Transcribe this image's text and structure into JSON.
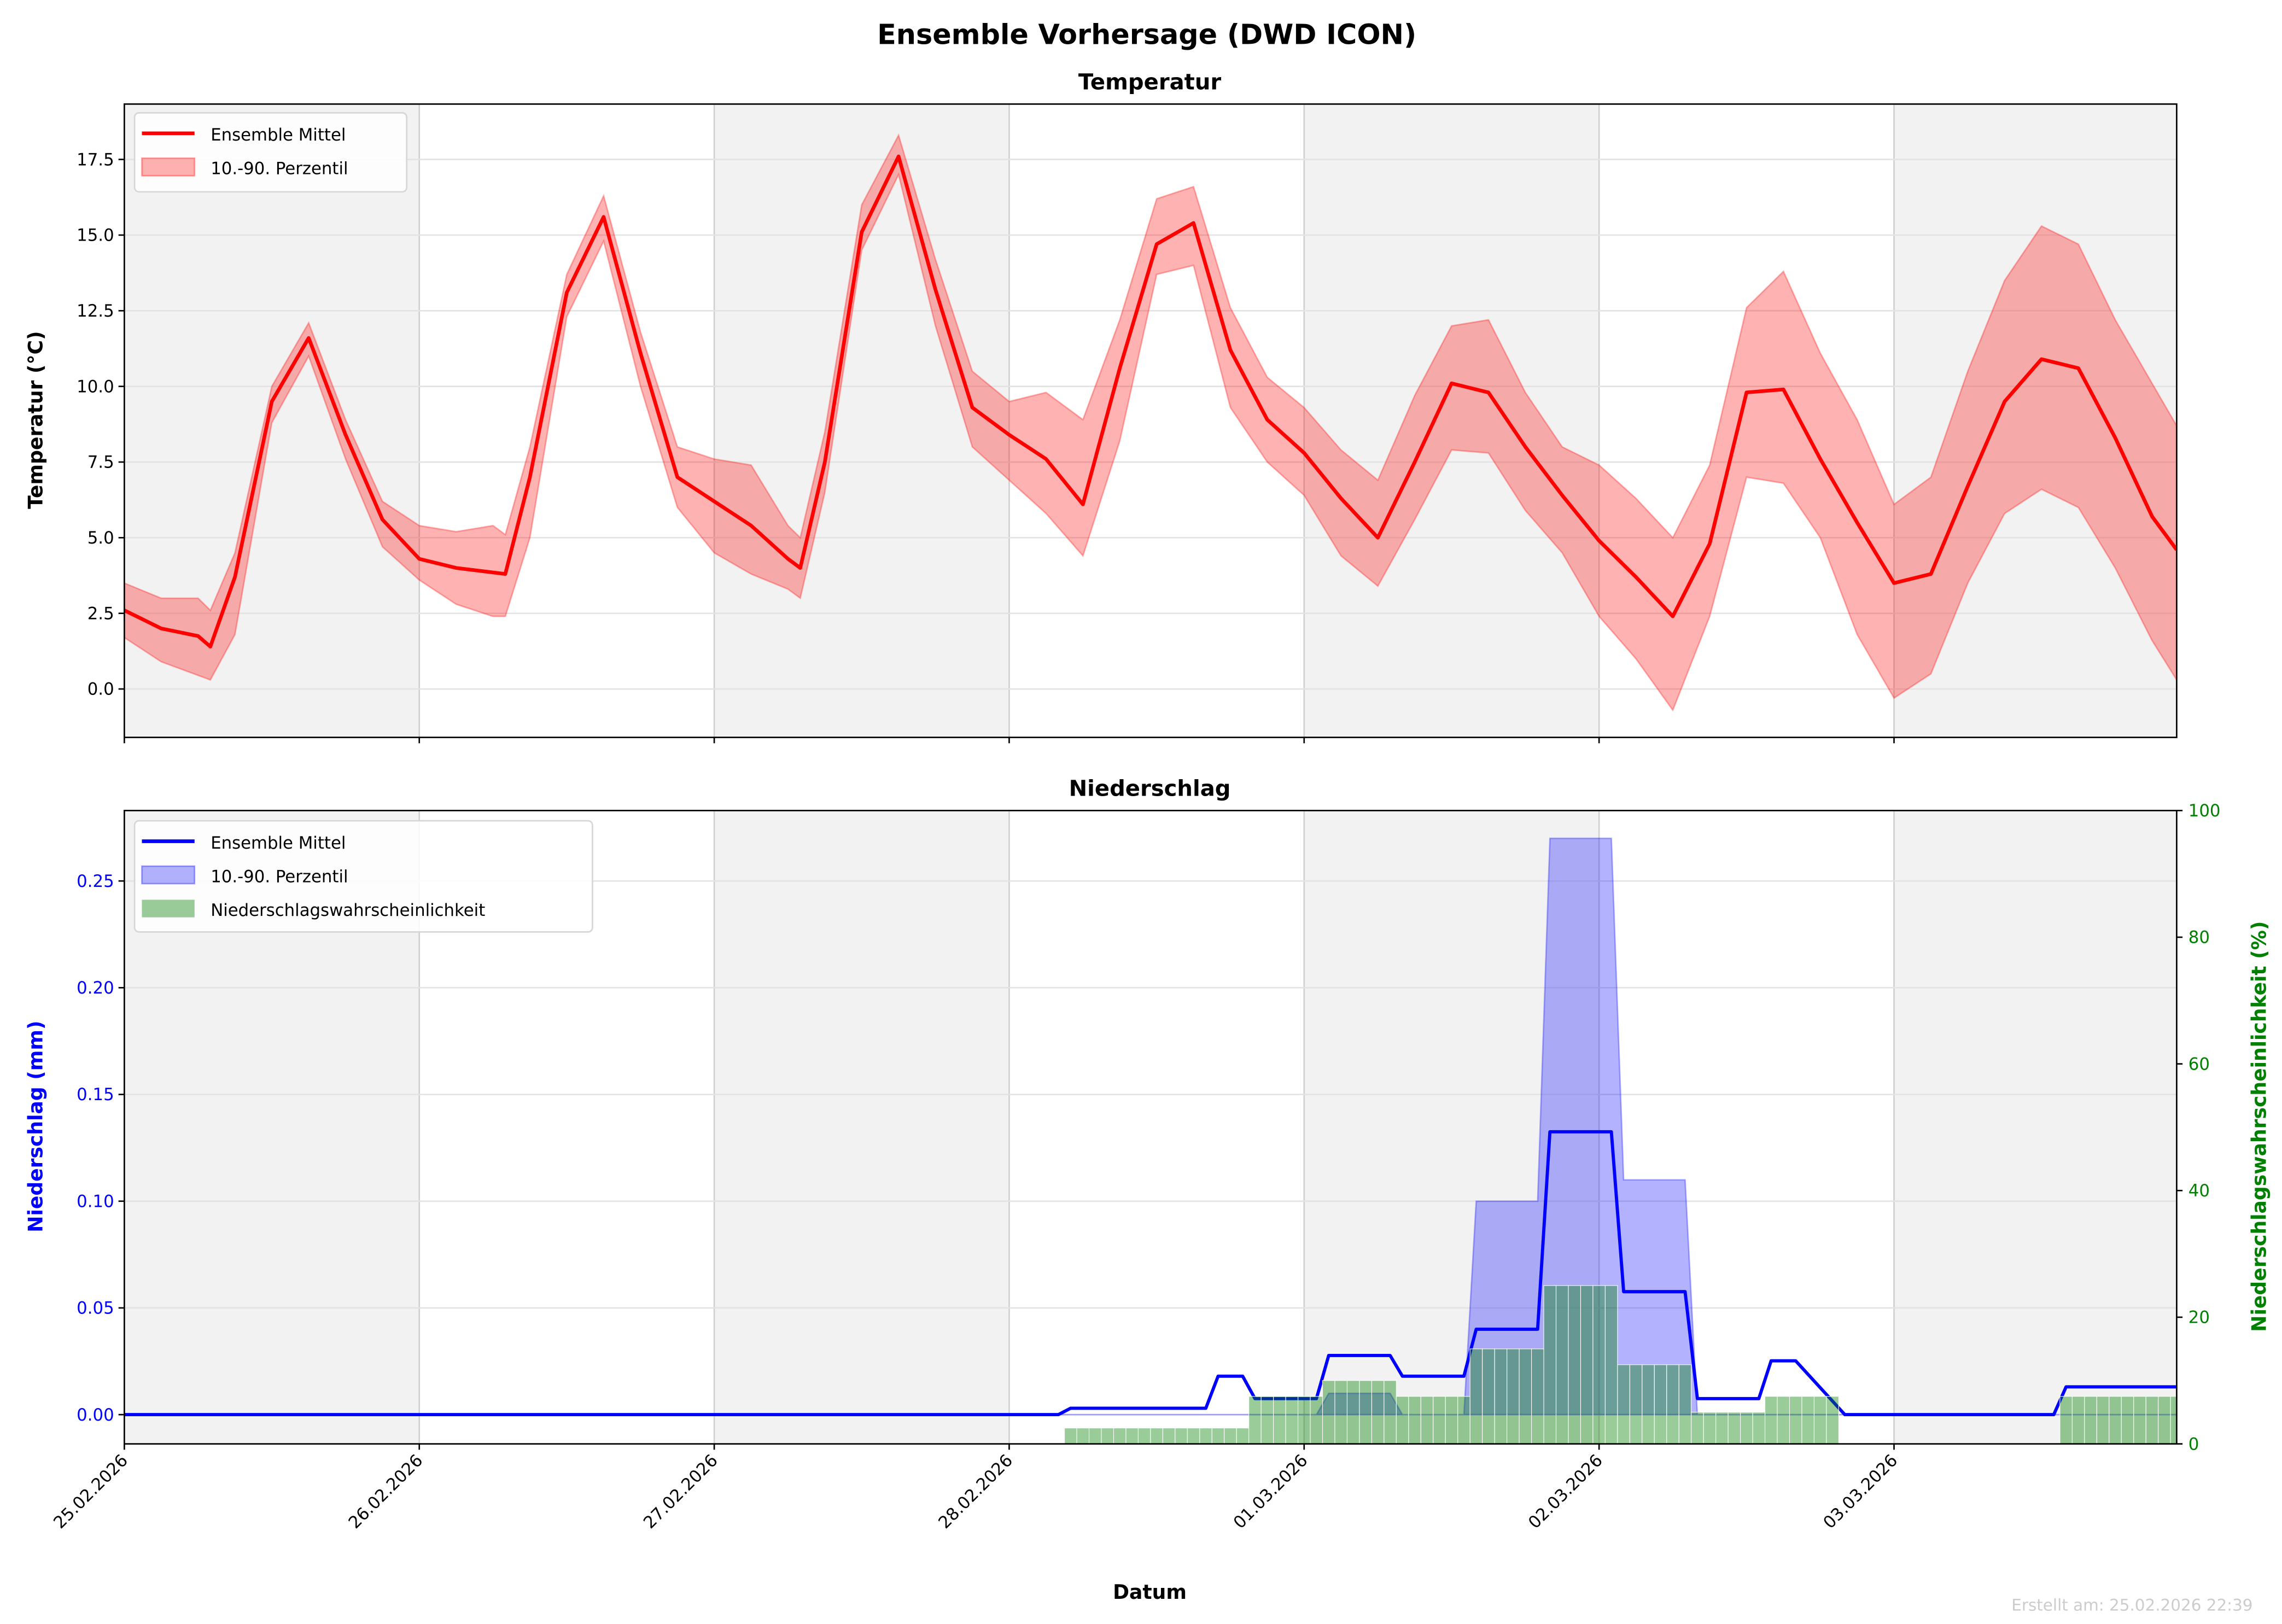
{
  "figure": {
    "title": "Ensemble Vorhersage (DWD ICON)",
    "footer": "Erstellt am: 25.02.2026 22:39",
    "xlabel": "Datum"
  },
  "colors": {
    "temp_line": "#ff0000",
    "temp_band": "#ff0000",
    "precip_line": "#0000ff",
    "precip_band": "#0000ff",
    "probability": "#008000",
    "day_shade": "#f2f2f2",
    "grid": "#e3e3e3"
  },
  "chart_data": [
    {
      "type": "line",
      "title": "Temperatur",
      "xlabel": "",
      "ylabel": "Temperatur (°C)",
      "x_unit": "hours since 25.02.2026 00:00",
      "xlim": [
        0,
        167
      ],
      "ylim": [
        -1.6,
        19.33
      ],
      "yticks": [
        0,
        2.5,
        5,
        7.5,
        10,
        12.5,
        15,
        17.5
      ],
      "ytick_labels": [
        "0.0",
        "2.5",
        "5.0",
        "7.5",
        "10.0",
        "12.5",
        "15.0",
        "17.5"
      ],
      "grid": true,
      "legend": {
        "placement": "top-left",
        "entries": [
          "Ensemble Mittel",
          "10.-90. Perzentil"
        ]
      },
      "hours": [
        0,
        3,
        6,
        7,
        9,
        12,
        15,
        18,
        21,
        24,
        27,
        30,
        31,
        33,
        36,
        39,
        42,
        45,
        48,
        51,
        54,
        55,
        57,
        60,
        63,
        66,
        69,
        72,
        75,
        78,
        81,
        84,
        87,
        90,
        93,
        96,
        99,
        102,
        105,
        108,
        111,
        114,
        117,
        120,
        123,
        126,
        129,
        132,
        135,
        138,
        141,
        144,
        147,
        150,
        153,
        156,
        159,
        162,
        165,
        167
      ],
      "series": [
        {
          "name": "Ensemble Mittel",
          "values": [
            2.6,
            2.0,
            1.75,
            1.4,
            3.7,
            9.5,
            11.6,
            8.4,
            5.6,
            4.3,
            4.0,
            3.85,
            3.8,
            7.0,
            13.1,
            15.6,
            11.1,
            7.0,
            6.2,
            5.4,
            4.3,
            4.0,
            7.5,
            15.1,
            17.6,
            13.2,
            9.3,
            8.4,
            7.6,
            6.1,
            10.6,
            14.7,
            15.4,
            11.2,
            8.9,
            7.8,
            6.3,
            5.0,
            7.5,
            10.1,
            9.8,
            8.0,
            6.4,
            4.9,
            3.7,
            2.4,
            4.8,
            9.8,
            9.9,
            7.6,
            5.5,
            3.5,
            3.8,
            6.7,
            9.5,
            10.9,
            10.6,
            8.3,
            5.7,
            4.6
          ]
        },
        {
          "name": "10. Perzentil",
          "values": [
            1.7,
            0.9,
            0.45,
            0.3,
            1.8,
            8.8,
            11.0,
            7.6,
            4.7,
            3.6,
            2.8,
            2.4,
            2.4,
            5.0,
            12.3,
            14.8,
            10.0,
            6.0,
            4.5,
            3.8,
            3.3,
            3.0,
            6.5,
            14.5,
            17.0,
            12.0,
            8.0,
            6.9,
            5.8,
            4.4,
            8.2,
            13.7,
            14.0,
            9.3,
            7.5,
            6.4,
            4.4,
            3.4,
            5.6,
            7.9,
            7.8,
            5.9,
            4.5,
            2.4,
            1.0,
            -0.7,
            2.4,
            7.0,
            6.8,
            5.0,
            1.8,
            -0.3,
            0.5,
            3.5,
            5.8,
            6.6,
            6.0,
            4.0,
            1.6,
            0.3
          ]
        },
        {
          "name": "90. Perzentil",
          "values": [
            3.5,
            3.0,
            3.0,
            2.6,
            4.5,
            10.0,
            12.1,
            8.9,
            6.2,
            5.4,
            5.2,
            5.4,
            5.1,
            8.0,
            13.7,
            16.3,
            11.8,
            8.0,
            7.6,
            7.4,
            5.4,
            5.0,
            8.5,
            16.0,
            18.3,
            14.2,
            10.5,
            9.5,
            9.8,
            8.9,
            12.2,
            16.2,
            16.6,
            12.6,
            10.3,
            9.3,
            7.9,
            6.9,
            9.7,
            12.0,
            12.2,
            9.8,
            8.0,
            7.4,
            6.3,
            5.0,
            7.4,
            12.6,
            13.8,
            11.1,
            8.9,
            6.1,
            7.0,
            10.5,
            13.5,
            15.3,
            14.7,
            12.2,
            10.1,
            8.7
          ]
        }
      ]
    },
    {
      "type": "line",
      "title": "Niederschlag",
      "xlabel": "Datum",
      "ylabel": "Niederschlag (mm)",
      "y2label": "Niederschlagswahrscheinlichkeit (%)",
      "x_unit": "hours since 25.02.2026 00:00",
      "xlim": [
        0,
        167
      ],
      "ylim": [
        -0.0137,
        0.283
      ],
      "y2lim": [
        0,
        100
      ],
      "yticks": [
        0,
        0.05,
        0.1,
        0.15,
        0.2,
        0.25
      ],
      "ytick_labels": [
        "0.00",
        "0.05",
        "0.10",
        "0.15",
        "0.20",
        "0.25"
      ],
      "y2ticks": [
        0,
        20,
        40,
        60,
        80,
        100
      ],
      "y2tick_labels": [
        "0",
        "20",
        "40",
        "60",
        "80",
        "100"
      ],
      "xticks": [
        0,
        24,
        48,
        72,
        96,
        120,
        144
      ],
      "xtick_labels": [
        "25.02.2026",
        "26.02.2026",
        "27.02.2026",
        "28.02.2026",
        "01.03.2026",
        "02.03.2026",
        "03.03.2026"
      ],
      "grid": true,
      "legend": {
        "placement": "top-left",
        "entries": [
          "Ensemble Mittel",
          "10.-90. Perzentil",
          "Niederschlagswahrscheinlichkeit"
        ]
      },
      "mean": [
        [
          0,
          0
        ],
        [
          76,
          0
        ],
        [
          77,
          0.003
        ],
        [
          88,
          0.003
        ],
        [
          89,
          0.018
        ],
        [
          91,
          0.018
        ],
        [
          92,
          0.0075
        ],
        [
          97,
          0.0075
        ],
        [
          98,
          0.0277
        ],
        [
          103,
          0.0277
        ],
        [
          104,
          0.018
        ],
        [
          109,
          0.018
        ],
        [
          110,
          0.04
        ],
        [
          115,
          0.04
        ],
        [
          116,
          0.1325
        ],
        [
          121,
          0.1325
        ],
        [
          122,
          0.0576
        ],
        [
          127,
          0.0576
        ],
        [
          128,
          0.0075
        ],
        [
          133,
          0.0075
        ],
        [
          134,
          0.0252
        ],
        [
          136,
          0.0252
        ],
        [
          140,
          0
        ],
        [
          157,
          0
        ],
        [
          158,
          0.013
        ],
        [
          167,
          0.013
        ]
      ],
      "p10": [
        [
          0,
          0
        ],
        [
          97,
          0
        ],
        [
          98,
          0.01
        ],
        [
          103,
          0.01
        ],
        [
          104,
          0
        ],
        [
          167,
          0
        ]
      ],
      "p90": [
        [
          0,
          0
        ],
        [
          109,
          0
        ],
        [
          110,
          0.1
        ],
        [
          115,
          0.1
        ],
        [
          116,
          0.27
        ],
        [
          121,
          0.27
        ],
        [
          122,
          0.11
        ],
        [
          127,
          0.11
        ],
        [
          128,
          0
        ],
        [
          167,
          0
        ]
      ],
      "probability_blocks": [
        {
          "from": 77,
          "to": 91,
          "value": 2.5
        },
        {
          "from": 92,
          "to": 97,
          "value": 7.5
        },
        {
          "from": 98,
          "to": 103,
          "value": 10
        },
        {
          "from": 104,
          "to": 109,
          "value": 7.5
        },
        {
          "from": 110,
          "to": 115,
          "value": 15
        },
        {
          "from": 116,
          "to": 121,
          "value": 25
        },
        {
          "from": 122,
          "to": 127,
          "value": 12.5
        },
        {
          "from": 128,
          "to": 133,
          "value": 5
        },
        {
          "from": 134,
          "to": 139,
          "value": 7.5
        },
        {
          "from": 158,
          "to": 167,
          "value": 7.5
        }
      ]
    }
  ]
}
